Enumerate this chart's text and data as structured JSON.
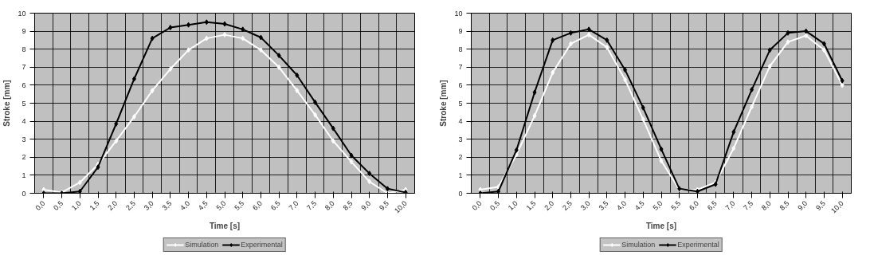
{
  "chart_data": [
    {
      "type": "line",
      "xlabel": "Time [s]",
      "ylabel": "Stroke [mm]",
      "categories": [
        "0,0",
        "0,5",
        "1,0",
        "1,5",
        "2,0",
        "2,5",
        "3,0",
        "3,5",
        "4,0",
        "4,5",
        "5,0",
        "5,5",
        "6,0",
        "6,5",
        "7,0",
        "7,5",
        "8,0",
        "8,5",
        "9,0",
        "9,5",
        "10,0"
      ],
      "ylim": [
        0,
        10
      ],
      "yticks": [
        0,
        1,
        2,
        3,
        4,
        5,
        6,
        7,
        8,
        9,
        10
      ],
      "grid": true,
      "legend": "bottom",
      "marker": "diamond",
      "line_style": "solid",
      "series": [
        {
          "name": "Simulation",
          "color": "#ffffff",
          "values": [
            0.2,
            0.05,
            0.6,
            1.6,
            2.9,
            4.25,
            5.7,
            6.9,
            7.95,
            8.6,
            8.8,
            8.6,
            7.95,
            7.0,
            5.7,
            4.35,
            2.9,
            1.75,
            0.65,
            0.0,
            0.2
          ]
        },
        {
          "name": "Experimental",
          "color": "#000000",
          "values": [
            0.0,
            0.0,
            0.1,
            1.45,
            3.85,
            6.35,
            8.6,
            9.2,
            9.35,
            9.5,
            9.4,
            9.1,
            8.65,
            7.65,
            6.55,
            5.05,
            3.6,
            2.1,
            1.1,
            0.25,
            0.05
          ]
        }
      ]
    },
    {
      "type": "line",
      "xlabel": "Time [s]",
      "ylabel": "Stroke [mm]",
      "categories": [
        "0,0",
        "0,5",
        "1,0",
        "1,5",
        "2,0",
        "2,5",
        "3,0",
        "3,5",
        "4,0",
        "4,5",
        "5,0",
        "5,5",
        "6,0",
        "6,5",
        "7,0",
        "7,5",
        "8,0",
        "8,5",
        "9,0",
        "9,5",
        "10,0"
      ],
      "ylim": [
        0,
        10
      ],
      "yticks": [
        0,
        1,
        2,
        3,
        4,
        5,
        6,
        7,
        8,
        9,
        10
      ],
      "grid": true,
      "legend": "bottom",
      "marker": "diamond",
      "line_style": "solid",
      "series": [
        {
          "name": "Simulation",
          "color": "#ffffff",
          "values": [
            0.2,
            0.35,
            2.15,
            4.3,
            6.7,
            8.3,
            8.8,
            8.1,
            6.3,
            4.1,
            1.8,
            0.2,
            0.2,
            0.6,
            2.5,
            4.8,
            7.05,
            8.4,
            8.75,
            7.95,
            6.0
          ]
        },
        {
          "name": "Experimental",
          "color": "#000000",
          "values": [
            0.0,
            0.1,
            2.4,
            5.6,
            8.5,
            8.9,
            9.1,
            8.5,
            6.85,
            4.75,
            2.45,
            0.25,
            0.1,
            0.5,
            3.4,
            5.75,
            7.95,
            8.9,
            9.0,
            8.3,
            6.25
          ]
        }
      ]
    }
  ]
}
